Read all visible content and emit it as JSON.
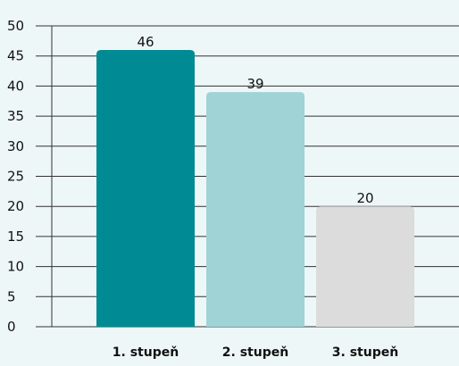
{
  "chart_data": {
    "type": "bar",
    "categories": [
      "1. stupeň",
      "2. stupeň",
      "3. stupeň"
    ],
    "values": [
      46,
      39,
      20
    ],
    "colors": [
      "#008a93",
      "#a0d3d6",
      "#dcdcdc"
    ],
    "title": "",
    "xlabel": "",
    "ylabel": "",
    "ylim": [
      0,
      50
    ],
    "yticks": [
      0,
      5,
      10,
      15,
      20,
      25,
      30,
      35,
      40,
      45,
      50
    ],
    "grid": true,
    "data_labels": true
  }
}
